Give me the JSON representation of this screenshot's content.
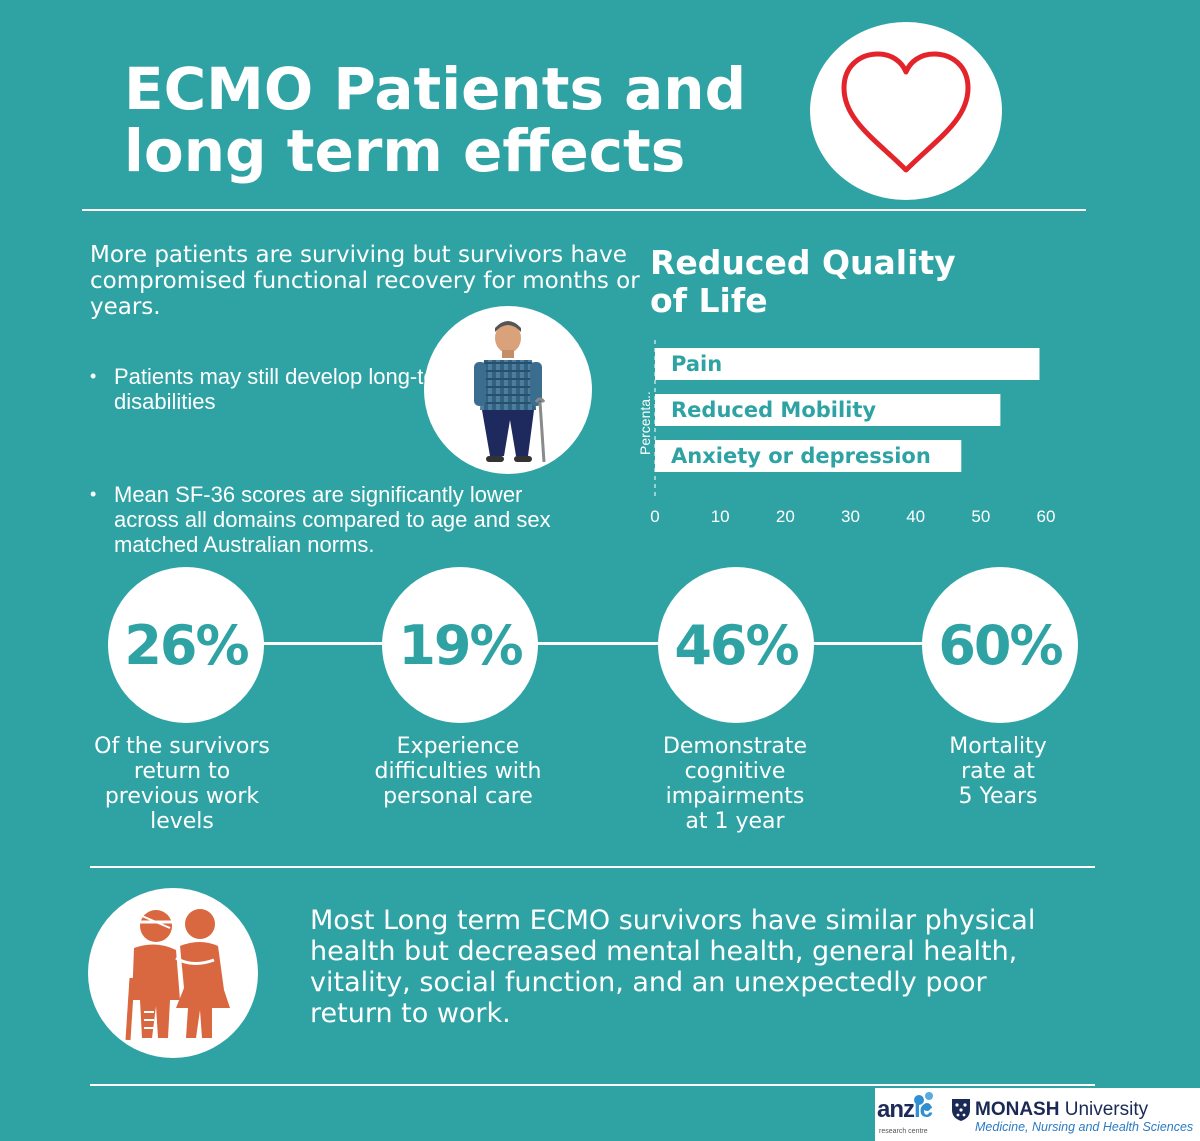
{
  "header": {
    "title_line1": "ECMO Patients and",
    "title_line2": "long term effects"
  },
  "intro": {
    "text": "More patients are surviving but survivors have compromised functional recovery for months or years.",
    "bullets": [
      "Patients may still develop long-term disabilities",
      "Mean SF-36 scores are significantly lower across all domains compared to age and sex matched Australian norms."
    ]
  },
  "chart": {
    "heading_line1": "Reduced Quality",
    "heading_line2": "of Life"
  },
  "chart_data": {
    "type": "bar",
    "orientation": "horizontal",
    "categories": [
      "Pain",
      "Reduced Mobility",
      "Anxiety or depression"
    ],
    "values": [
      59,
      53,
      47
    ],
    "ylabel": "Percenta..",
    "xlim": [
      0,
      60
    ],
    "xticks": [
      "0",
      "10",
      "20",
      "30",
      "40",
      "50",
      "60"
    ],
    "bar_color": "#ffffff",
    "label_color": "#2fa3a4",
    "grid": false
  },
  "stats": [
    {
      "value": "26%",
      "label_lines": [
        "Of the survivors",
        "return to",
        "previous work",
        "levels"
      ]
    },
    {
      "value": "19%",
      "label_lines": [
        "Experience",
        "difficulties with",
        "personal care"
      ]
    },
    {
      "value": "46%",
      "label_lines": [
        "Demonstrate",
        "cognitive",
        "impairments",
        "at 1 year"
      ]
    },
    {
      "value": "60%",
      "label_lines": [
        "Mortality",
        "rate at",
        "5 Years"
      ]
    }
  ],
  "bottom": {
    "text": "Most Long term ECMO survivors have similar physical health but decreased mental health, general health, vitality, social function, and an unexpectedly poor return to work."
  },
  "logos": {
    "anzic_main": "anz",
    "anzic_accent": "ic",
    "anzic_sub": "research centre",
    "monash_bold": "MONASH",
    "monash_rest": " University",
    "monash_faculty": "Medicine, Nursing and Health Sciences"
  },
  "colors": {
    "background": "#2fa3a4",
    "heart": "#e3242b",
    "illustration_orange": "#d9673f"
  },
  "icons": [
    "heart-icon",
    "elderly-man-with-cane-icon",
    "elderly-couple-icon",
    "monash-crest-icon",
    "anzic-bubbles-icon"
  ]
}
